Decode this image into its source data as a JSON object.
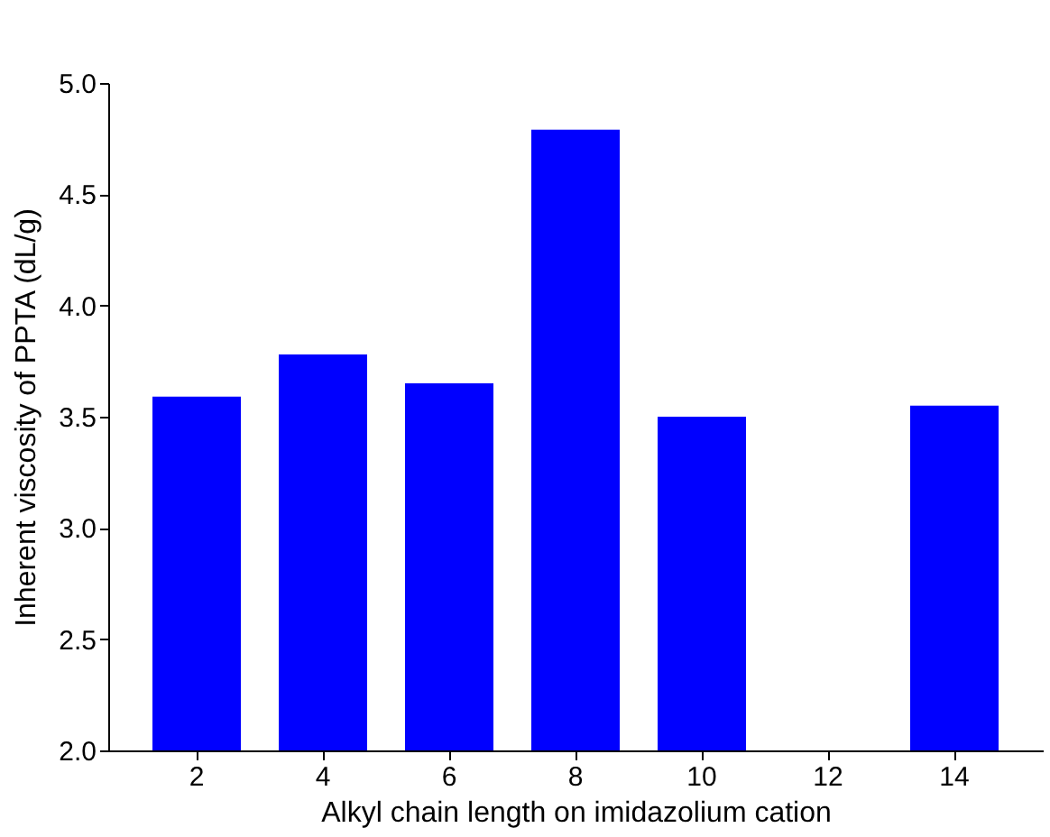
{
  "chart_data": {
    "type": "bar",
    "xlabel": "Alkyl chain length on imidazolium cation",
    "ylabel": "Inherent viscosity of PPTA (dL/g)",
    "categories": [
      "2",
      "4",
      "6",
      "8",
      "10",
      "12",
      "14"
    ],
    "values": [
      3.59,
      3.78,
      3.65,
      4.79,
      3.5,
      null,
      3.55
    ],
    "color": "#0000ff",
    "ylim": [
      2.0,
      5.0
    ],
    "yticks": [
      {
        "value": 2,
        "label": "2.0"
      },
      {
        "value": 2.5,
        "label": "2.5"
      },
      {
        "value": 3,
        "label": "3.0"
      },
      {
        "value": 3.5,
        "label": "3.5"
      },
      {
        "value": 4,
        "label": "4.0"
      },
      {
        "value": 4.5,
        "label": "4.5"
      },
      {
        "value": 5,
        "label": "5.0"
      }
    ],
    "grid": false
  }
}
